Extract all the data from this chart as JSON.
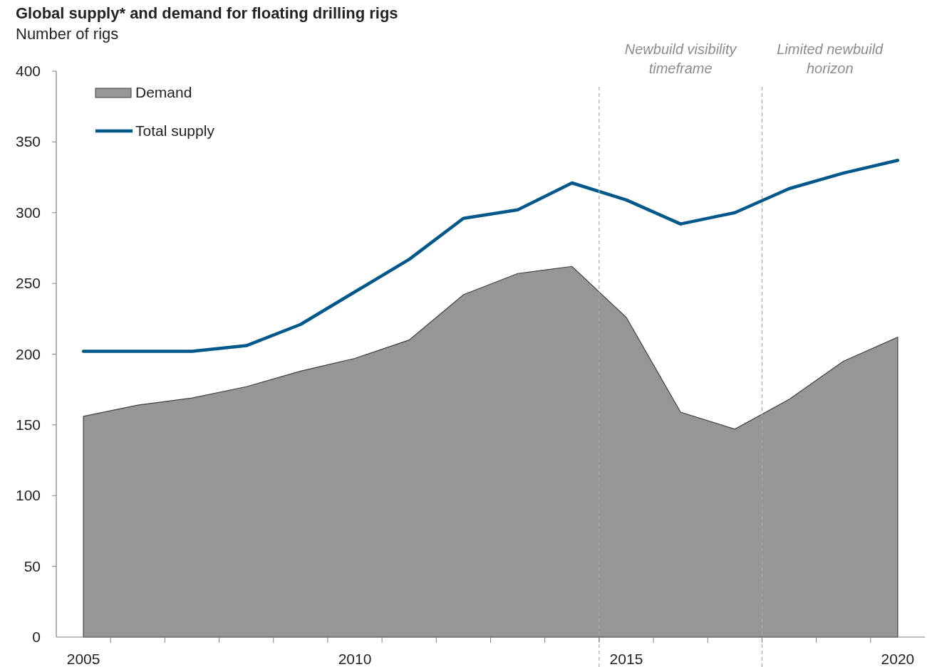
{
  "chart_data": {
    "type": "line",
    "title": "Global supply* and demand for floating drilling rigs",
    "subtitle": "Number of rigs",
    "x": [
      2005,
      2006,
      2007,
      2008,
      2009,
      2010,
      2011,
      2012,
      2013,
      2014,
      2015,
      2016,
      2017,
      2018,
      2019,
      2020
    ],
    "series": [
      {
        "name": "Demand",
        "type": "area",
        "color": "#969696",
        "values": [
          156,
          164,
          169,
          177,
          188,
          197,
          210,
          242,
          257,
          262,
          226,
          159,
          147,
          168,
          195,
          212
        ]
      },
      {
        "name": "Total supply",
        "color": "#00578a",
        "values": [
          202,
          202,
          202,
          206,
          221,
          244,
          267,
          296,
          302,
          321,
          309,
          292,
          300,
          317,
          328,
          337
        ]
      }
    ],
    "xlim": [
      2004.5,
      2020.5
    ],
    "xticks": [
      {
        "value": 2005,
        "label": "2005"
      },
      {
        "value": 2010,
        "label": "2010"
      },
      {
        "value": 2015,
        "label": "2015"
      },
      {
        "value": 2020,
        "label": "2020"
      },
      {
        "value": 2005.5,
        "label": null
      },
      {
        "value": 2006.5,
        "label": null
      },
      {
        "value": 2007.5,
        "label": null
      },
      {
        "value": 2008.5,
        "label": null
      },
      {
        "value": 2009.5,
        "label": null
      },
      {
        "value": 2010.5,
        "label": null
      },
      {
        "value": 2011.5,
        "label": null
      },
      {
        "value": 2012.5,
        "label": null
      },
      {
        "value": 2013.5,
        "label": null
      },
      {
        "value": 2014.5,
        "label": null
      },
      {
        "value": 2015.5,
        "label": null
      },
      {
        "value": 2016.5,
        "label": null
      },
      {
        "value": 2017.5,
        "label": null
      },
      {
        "value": 2018.5,
        "label": null
      },
      {
        "value": 2019.5,
        "label": null
      }
    ],
    "ylim": [
      0,
      400
    ],
    "yticks": [
      0,
      50,
      100,
      150,
      200,
      250,
      300,
      350,
      400
    ],
    "ref_lines": [
      {
        "axis": "x",
        "value": 2014.5,
        "label": "Newbuild visibility timeframe",
        "color": "#a6a6a6",
        "line_style": "dashed"
      },
      {
        "axis": "x",
        "value": 2017.5,
        "label": "Limited newbuild horizon",
        "color": "#a6a6a6",
        "line_style": "dashed"
      }
    ],
    "legend": "top left",
    "grid": false
  }
}
